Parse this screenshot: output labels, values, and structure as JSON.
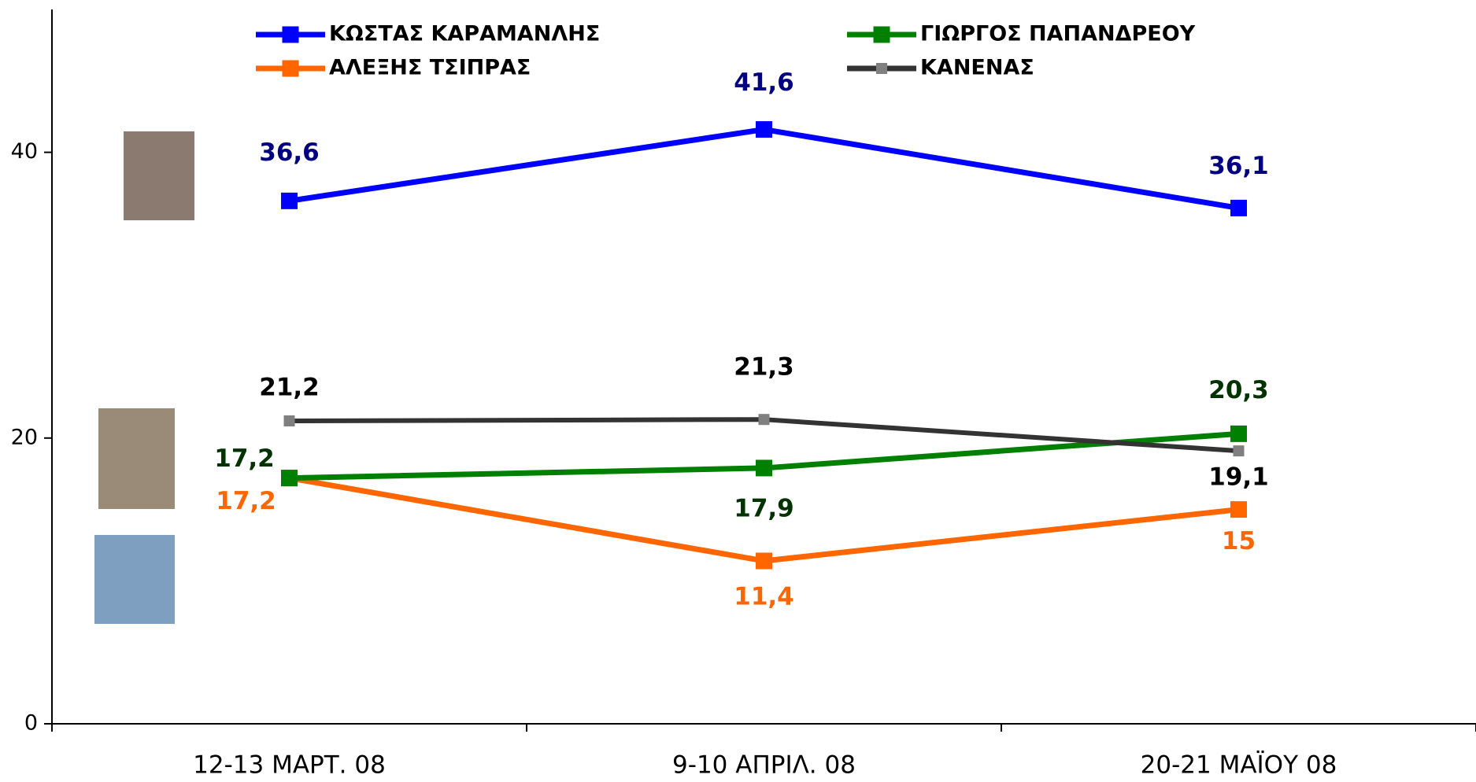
{
  "chart_data": {
    "type": "line",
    "categories": [
      "12-13 ΜΑΡΤ. 08",
      "9-10 ΑΠΡΙΛ. 08",
      "20-21 ΜΑΪΟΥ 08"
    ],
    "ylim": [
      0,
      50
    ],
    "yticks": [
      0,
      20,
      40
    ],
    "series": [
      {
        "name": "ΚΩΣΤΑΣ ΚΑΡΑΜΑΝΛΗΣ",
        "color": "#0000ff",
        "marker_color": "#0000ff",
        "label_color": "#000080",
        "values": [
          36.6,
          41.6,
          36.1
        ],
        "value_labels": [
          "36,6",
          "41,6",
          "36,1"
        ]
      },
      {
        "name": "ΓΙΩΡΓΟΣ ΠΑΠΑΝΔΡΕΟΥ",
        "color": "#008000",
        "marker_color": "#008000",
        "label_color": "#003300",
        "values": [
          17.2,
          17.9,
          20.3
        ],
        "value_labels": [
          "17,2",
          "17,9",
          "20,3"
        ]
      },
      {
        "name": "ΑΛΕΞΗΣ ΤΣΙΠΡΑΣ",
        "color": "#ff6600",
        "marker_color": "#ff6600",
        "label_color": "#ff6600",
        "values": [
          17.2,
          11.4,
          15
        ],
        "value_labels": [
          "17,2",
          "11,4",
          "15"
        ]
      },
      {
        "name": "ΚΑΝΕΝΑΣ",
        "color": "#333333",
        "marker_color": "#808080",
        "label_color": "#000000",
        "values": [
          21.2,
          21.3,
          19.1
        ],
        "value_labels": [
          "21,2",
          "21,3",
          "19,1"
        ]
      }
    ]
  }
}
